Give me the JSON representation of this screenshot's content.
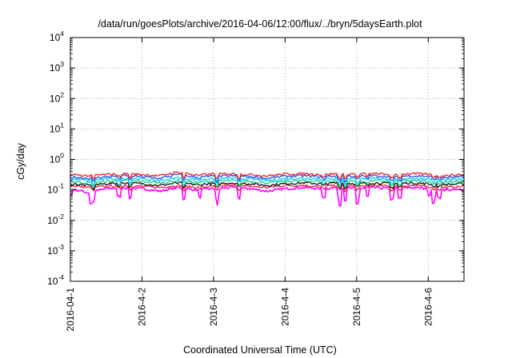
{
  "chart_data": {
    "type": "line",
    "title": "/data/run/goesPlots/archive/2016-04-06/12:00/flux/../bryn/5daysEarth.plot",
    "xlabel": "Coordinated Universal Time (UTC)",
    "ylabel": "cGy/day",
    "yscale": "log",
    "ylim": [
      0.0001,
      10000
    ],
    "y_ticks": [
      {
        "base": "10",
        "exp": "-4",
        "value": 0.0001
      },
      {
        "base": "10",
        "exp": "-3",
        "value": 0.001
      },
      {
        "base": "10",
        "exp": "-2",
        "value": 0.01
      },
      {
        "base": "10",
        "exp": "-1",
        "value": 0.1
      },
      {
        "base": "10",
        "exp": "0",
        "value": 1
      },
      {
        "base": "10",
        "exp": "1",
        "value": 10
      },
      {
        "base": "10",
        "exp": "2",
        "value": 100
      },
      {
        "base": "10",
        "exp": "3",
        "value": 1000
      },
      {
        "base": "10",
        "exp": "4",
        "value": 10000
      }
    ],
    "xlim": [
      "2016-04-01T00:00",
      "2016-04-06T12:00"
    ],
    "x_ticks": [
      {
        "label": "2016-04-1",
        "date": "2016-04-01T00:00"
      },
      {
        "label": "2016-4-2",
        "date": "2016-04-02T00:00"
      },
      {
        "label": "2016-4-3",
        "date": "2016-04-03T00:00"
      },
      {
        "label": "2016-4-4",
        "date": "2016-04-04T00:00"
      },
      {
        "label": "2016-4-5",
        "date": "2016-04-05T00:00"
      },
      {
        "label": "2016-4-6",
        "date": "2016-04-06T00:00"
      }
    ],
    "grid": true,
    "series_colors": [
      "#ff00ff",
      "#e8204a",
      "#111111",
      "#22cc88",
      "#00ccff",
      "#2255ee",
      "#ee2222"
    ],
    "series_baselines": [
      0.115,
      0.135,
      0.16,
      0.19,
      0.23,
      0.27,
      0.32
    ],
    "x": [
      "2016-04-01T00:00",
      "2016-04-01T06:00",
      "2016-04-01T12:00",
      "2016-04-01T18:00",
      "2016-04-02T00:00",
      "2016-04-02T06:00",
      "2016-04-02T12:00",
      "2016-04-02T18:00",
      "2016-04-03T00:00",
      "2016-04-03T06:00",
      "2016-04-03T12:00",
      "2016-04-03T18:00",
      "2016-04-04T00:00",
      "2016-04-04T06:00",
      "2016-04-04T12:00",
      "2016-04-04T18:00",
      "2016-04-05T00:00",
      "2016-04-05T06:00",
      "2016-04-05T12:00",
      "2016-04-05T18:00",
      "2016-04-06T00:00",
      "2016-04-06T06:00",
      "2016-04-06T12:00"
    ],
    "series": [
      {
        "values": [
          0.11,
          0.08,
          0.11,
          0.12,
          0.11,
          0.09,
          0.12,
          0.1,
          0.11,
          0.12,
          0.11,
          0.09,
          0.11,
          0.12,
          0.11,
          0.12,
          0.11,
          0.12,
          0.11,
          0.12,
          0.11,
          0.1,
          0.1
        ]
      },
      {
        "values": [
          0.14,
          0.12,
          0.13,
          0.14,
          0.13,
          0.12,
          0.14,
          0.12,
          0.13,
          0.14,
          0.13,
          0.12,
          0.14,
          0.14,
          0.13,
          0.14,
          0.13,
          0.14,
          0.13,
          0.14,
          0.13,
          0.12,
          0.13
        ]
      },
      {
        "values": [
          0.16,
          0.14,
          0.16,
          0.17,
          0.16,
          0.14,
          0.17,
          0.15,
          0.16,
          0.17,
          0.16,
          0.14,
          0.16,
          0.17,
          0.16,
          0.17,
          0.16,
          0.17,
          0.16,
          0.17,
          0.16,
          0.15,
          0.16
        ]
      },
      {
        "values": [
          0.19,
          0.17,
          0.19,
          0.2,
          0.19,
          0.17,
          0.2,
          0.18,
          0.19,
          0.2,
          0.19,
          0.17,
          0.19,
          0.2,
          0.19,
          0.2,
          0.19,
          0.2,
          0.19,
          0.2,
          0.19,
          0.18,
          0.19
        ]
      },
      {
        "values": [
          0.23,
          0.2,
          0.23,
          0.24,
          0.23,
          0.2,
          0.25,
          0.22,
          0.23,
          0.24,
          0.23,
          0.2,
          0.23,
          0.24,
          0.23,
          0.24,
          0.23,
          0.24,
          0.23,
          0.24,
          0.23,
          0.21,
          0.23
        ]
      },
      {
        "values": [
          0.27,
          0.24,
          0.27,
          0.29,
          0.27,
          0.24,
          0.32,
          0.26,
          0.28,
          0.29,
          0.27,
          0.24,
          0.28,
          0.29,
          0.27,
          0.29,
          0.28,
          0.29,
          0.27,
          0.29,
          0.28,
          0.25,
          0.27
        ]
      },
      {
        "values": [
          0.32,
          0.29,
          0.32,
          0.34,
          0.32,
          0.29,
          0.38,
          0.31,
          0.33,
          0.34,
          0.32,
          0.29,
          0.33,
          0.34,
          0.32,
          0.34,
          0.33,
          0.34,
          0.32,
          0.34,
          0.33,
          0.3,
          0.32
        ]
      }
    ]
  }
}
